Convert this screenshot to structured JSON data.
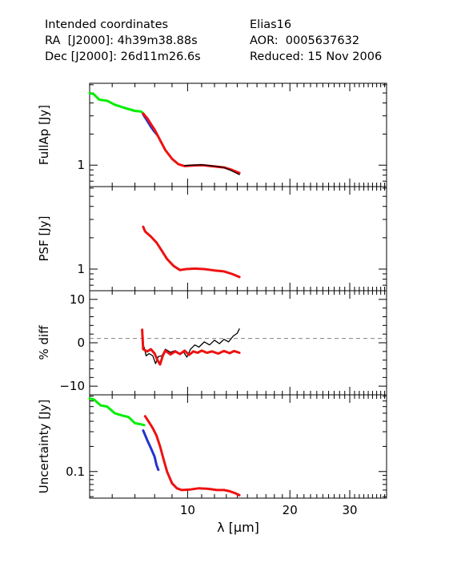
{
  "header": {
    "left": {
      "line1": "Intended coordinates",
      "line2": "RA  [J2000]: 4h39m38.88s",
      "line3": "Dec [J2000]: 26d11m26.6s"
    },
    "right": {
      "line1": "Elias16",
      "line2": "AOR:  0005637632",
      "line3": "Reduced: 15 Nov 2006"
    }
  },
  "colors": {
    "green": "#00ee00",
    "blue": "#2233cc",
    "red": "#ee1111",
    "black": "#000000",
    "dashed": "#808080"
  },
  "chart_data": [
    {
      "type": "line",
      "ylabel": "FullAp [Jy]",
      "xlabel": "",
      "y_scale": "log",
      "ylim": [
        0.62,
        6.2
      ],
      "yticks": [
        {
          "value": 1,
          "label": "1"
        }
      ],
      "x_scale": "log",
      "xlim": [
        5.15,
        38.5
      ],
      "series": [
        {
          "color": "green",
          "points": [
            [
              5.15,
              5.0
            ],
            [
              5.3,
              4.85
            ],
            [
              5.5,
              4.3
            ],
            [
              5.8,
              4.2
            ],
            [
              6.1,
              3.85
            ],
            [
              6.5,
              3.6
            ],
            [
              7.0,
              3.35
            ],
            [
              7.3,
              3.3
            ],
            [
              7.45,
              3.1
            ]
          ]
        },
        {
          "color": "blue",
          "points": [
            [
              7.4,
              3.1
            ],
            [
              7.6,
              2.7
            ],
            [
              7.8,
              2.35
            ],
            [
              8.0,
              2.1
            ],
            [
              8.15,
              1.95
            ]
          ]
        },
        {
          "color": "red",
          "points": [
            [
              7.4,
              3.15
            ],
            [
              7.6,
              2.85
            ],
            [
              7.8,
              2.5
            ],
            [
              8.0,
              2.2
            ],
            [
              8.3,
              1.75
            ],
            [
              8.6,
              1.4
            ],
            [
              9.0,
              1.15
            ],
            [
              9.4,
              1.02
            ],
            [
              9.8,
              0.98
            ],
            [
              10.3,
              0.99
            ],
            [
              11.0,
              1.0
            ],
            [
              12.0,
              0.97
            ],
            [
              12.8,
              0.95
            ],
            [
              13.5,
              0.9
            ],
            [
              14.2,
              0.84
            ]
          ]
        },
        {
          "color": "black",
          "points": [
            [
              9.8,
              0.99
            ],
            [
              10.3,
              1.0
            ],
            [
              11.0,
              1.01
            ],
            [
              12.0,
              0.98
            ],
            [
              12.8,
              0.95
            ],
            [
              13.5,
              0.88
            ],
            [
              14.2,
              0.81
            ]
          ]
        }
      ]
    },
    {
      "type": "line",
      "ylabel": "PSF [Jy]",
      "xlabel": "",
      "y_scale": "log",
      "ylim": [
        0.62,
        6.2
      ],
      "yticks": [
        {
          "value": 1,
          "label": "1"
        }
      ],
      "x_scale": "log",
      "xlim": [
        5.15,
        38.5
      ],
      "series": [
        {
          "color": "red",
          "points": [
            [
              7.4,
              2.55
            ],
            [
              7.5,
              2.3
            ],
            [
              7.8,
              2.05
            ],
            [
              8.1,
              1.8
            ],
            [
              8.4,
              1.5
            ],
            [
              8.7,
              1.25
            ],
            [
              9.1,
              1.07
            ],
            [
              9.5,
              0.98
            ],
            [
              9.9,
              1.0
            ],
            [
              10.5,
              1.01
            ],
            [
              11.2,
              1.0
            ],
            [
              12.0,
              0.97
            ],
            [
              12.8,
              0.95
            ],
            [
              13.5,
              0.9
            ],
            [
              14.2,
              0.84
            ]
          ]
        }
      ]
    },
    {
      "type": "line",
      "ylabel": "% diff",
      "xlabel": "",
      "y_scale": "linear",
      "ylim": [
        -12,
        12
      ],
      "yticks": [
        {
          "value": 10,
          "label": "10"
        },
        {
          "value": 0,
          "label": "0"
        },
        {
          "value": -10,
          "label": "−10"
        }
      ],
      "reference_line": 1,
      "x_scale": "log",
      "xlim": [
        5.15,
        38.5
      ],
      "series": [
        {
          "color": "black",
          "points": [
            [
              7.45,
              -1
            ],
            [
              7.55,
              -3
            ],
            [
              7.7,
              -2.5
            ],
            [
              7.9,
              -3
            ],
            [
              8.05,
              -4.8
            ],
            [
              8.2,
              -3.2
            ],
            [
              8.4,
              -3
            ],
            [
              8.6,
              -1.5
            ],
            [
              8.9,
              -2.2
            ],
            [
              9.2,
              -1.8
            ],
            [
              9.5,
              -2.5
            ],
            [
              9.7,
              -2
            ],
            [
              9.95,
              -3.3
            ],
            [
              10.2,
              -1.5
            ],
            [
              10.5,
              -0.5
            ],
            [
              10.8,
              -1
            ],
            [
              11.2,
              0.2
            ],
            [
              11.6,
              -0.5
            ],
            [
              12.0,
              0.6
            ],
            [
              12.4,
              -0.2
            ],
            [
              12.8,
              0.8
            ],
            [
              13.2,
              0.2
            ],
            [
              13.6,
              1.5
            ],
            [
              14.0,
              2.2
            ],
            [
              14.2,
              3.2
            ]
          ]
        },
        {
          "color": "red",
          "points": [
            [
              7.35,
              3
            ],
            [
              7.4,
              -1.5
            ],
            [
              7.6,
              -2
            ],
            [
              7.8,
              -1.5
            ],
            [
              8.0,
              -2.5
            ],
            [
              8.15,
              -4
            ],
            [
              8.3,
              -5
            ],
            [
              8.45,
              -3
            ],
            [
              8.6,
              -1.8
            ],
            [
              8.9,
              -2.7
            ],
            [
              9.2,
              -2.0
            ],
            [
              9.5,
              -2.6
            ],
            [
              9.8,
              -1.8
            ],
            [
              10.1,
              -2.8
            ],
            [
              10.4,
              -2
            ],
            [
              10.7,
              -2.3
            ],
            [
              11.0,
              -1.8
            ],
            [
              11.4,
              -2.3
            ],
            [
              11.8,
              -2.0
            ],
            [
              12.3,
              -2.5
            ],
            [
              12.8,
              -1.9
            ],
            [
              13.3,
              -2.4
            ],
            [
              13.7,
              -1.9
            ],
            [
              14.2,
              -2.3
            ]
          ]
        }
      ]
    },
    {
      "type": "line",
      "ylabel": "Uncertainty [Jy]",
      "xlabel": "λ [μm]",
      "y_scale": "log",
      "ylim": [
        0.048,
        0.83
      ],
      "yticks": [
        {
          "value": 0.1,
          "label": "0.1"
        }
      ],
      "x_scale": "log",
      "xlim": [
        5.15,
        38.5
      ],
      "xticks": [
        {
          "value": 10,
          "label": "10"
        },
        {
          "value": 20,
          "label": "20"
        },
        {
          "value": 30,
          "label": "30"
        }
      ],
      "series": [
        {
          "color": "green",
          "points": [
            [
              5.15,
              0.75
            ],
            [
              5.3,
              0.73
            ],
            [
              5.55,
              0.62
            ],
            [
              5.8,
              0.6
            ],
            [
              6.1,
              0.5
            ],
            [
              6.4,
              0.47
            ],
            [
              6.7,
              0.45
            ],
            [
              7.0,
              0.38
            ],
            [
              7.25,
              0.37
            ],
            [
              7.45,
              0.36
            ]
          ]
        },
        {
          "color": "blue",
          "points": [
            [
              7.4,
              0.31
            ],
            [
              7.6,
              0.24
            ],
            [
              7.8,
              0.19
            ],
            [
              8.0,
              0.15
            ],
            [
              8.1,
              0.12
            ],
            [
              8.2,
              0.105
            ]
          ]
        },
        {
          "color": "red",
          "points": [
            [
              7.5,
              0.46
            ],
            [
              7.7,
              0.39
            ],
            [
              7.9,
              0.33
            ],
            [
              8.1,
              0.27
            ],
            [
              8.3,
              0.2
            ],
            [
              8.5,
              0.14
            ],
            [
              8.7,
              0.1
            ],
            [
              9.0,
              0.072
            ],
            [
              9.3,
              0.063
            ],
            [
              9.6,
              0.06
            ],
            [
              10.2,
              0.061
            ],
            [
              10.8,
              0.063
            ],
            [
              11.5,
              0.062
            ],
            [
              12.2,
              0.06
            ],
            [
              12.8,
              0.06
            ],
            [
              13.3,
              0.058
            ],
            [
              13.8,
              0.055
            ],
            [
              14.2,
              0.052
            ]
          ]
        }
      ]
    }
  ]
}
